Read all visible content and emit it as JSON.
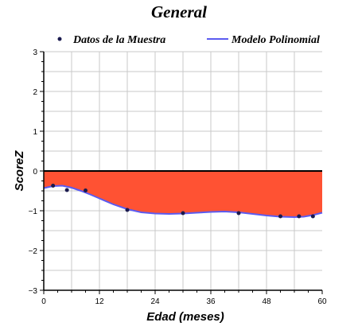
{
  "chart_data": {
    "type": "line",
    "title": "General",
    "xlabel": "Edad (meses)",
    "ylabel": "ScoreZ",
    "xlim": [
      0,
      60
    ],
    "ylim": [
      -3,
      3
    ],
    "xticks": [
      "0",
      "12",
      "24",
      "36",
      "48",
      "60"
    ],
    "yticks": [
      "−3",
      "−2",
      "−1",
      "0",
      "1",
      "2",
      "3"
    ],
    "grid": true,
    "legend_position": "top",
    "series": [
      {
        "name": "Datos de la Muestra",
        "kind": "scatter",
        "color": "#1a1a4e",
        "x": [
          2,
          5,
          9,
          18,
          30,
          42,
          51,
          55,
          58
        ],
        "y": [
          -0.37,
          -0.48,
          -0.49,
          -0.98,
          -1.06,
          -1.06,
          -1.14,
          -1.14,
          -1.14
        ]
      },
      {
        "name": "Modelo Polinomial",
        "kind": "line",
        "color": "#5b5bf0",
        "x": [
          0,
          2,
          4,
          6,
          8,
          10,
          12,
          15,
          18,
          21,
          24,
          27,
          30,
          33,
          36,
          39,
          42,
          45,
          48,
          51,
          54,
          56,
          58,
          60
        ],
        "y": [
          -0.43,
          -0.38,
          -0.37,
          -0.42,
          -0.5,
          -0.59,
          -0.69,
          -0.84,
          -0.96,
          -1.04,
          -1.07,
          -1.08,
          -1.07,
          -1.05,
          -1.03,
          -1.02,
          -1.04,
          -1.08,
          -1.12,
          -1.15,
          -1.16,
          -1.15,
          -1.11,
          -1.05
        ]
      }
    ],
    "fill_color": "#ff5233"
  }
}
